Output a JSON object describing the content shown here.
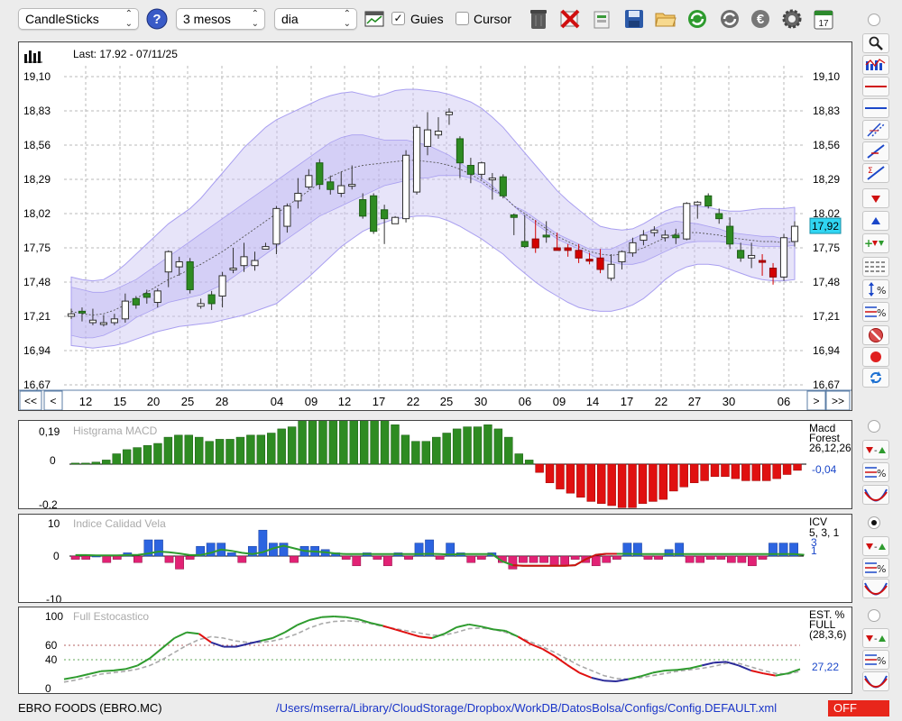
{
  "toolbar": {
    "chart_type": "CandleSticks",
    "period": "3 mesos",
    "interval": "dia",
    "guides_label": "Guies",
    "guides_checked": true,
    "cursor_label": "Cursor",
    "cursor_checked": false,
    "icons": [
      "help-icon",
      "chart-window-icon",
      "trash-icon",
      "delete-icon",
      "export-icon",
      "save-icon",
      "open-folder-icon",
      "refresh-icon",
      "globe-refresh-icon",
      "euro-icon",
      "settings-icon",
      "calendar-icon"
    ],
    "calendar_day": "17"
  },
  "main_chart": {
    "last_label": "Last: 17.92 - 07/11/25",
    "y_ticks": [
      "19,10",
      "18,83",
      "18,56",
      "18,29",
      "18,02",
      "17,75",
      "17,48",
      "17,21",
      "16,94",
      "16,67"
    ],
    "current_value": "17,92",
    "x_labels": [
      "12",
      "15",
      "20",
      "25",
      "28",
      "04",
      "09",
      "12",
      "17",
      "22",
      "25",
      "30",
      "06",
      "09",
      "14",
      "17",
      "22",
      "27",
      "30",
      "06"
    ],
    "nav_left": [
      "<<",
      "<"
    ],
    "nav_right": [
      ">",
      ">>"
    ],
    "y_min": 16.67,
    "y_max": 19.1,
    "colors": {
      "up": "#2e8b22",
      "down": "#d40000",
      "band": "#c9c3f2"
    },
    "candles": [
      [
        17.21,
        17.23,
        17.19,
        17.27,
        0
      ],
      [
        17.24,
        17.25,
        17.17,
        17.28,
        1
      ],
      [
        17.16,
        17.18,
        17.14,
        17.27,
        0
      ],
      [
        17.16,
        17.16,
        17.13,
        17.22,
        0
      ],
      [
        17.16,
        17.19,
        17.14,
        17.23,
        0
      ],
      [
        17.19,
        17.33,
        17.16,
        17.39,
        0
      ],
      [
        17.3,
        17.35,
        17.27,
        17.37,
        1
      ],
      [
        17.36,
        17.39,
        17.31,
        17.42,
        1
      ],
      [
        17.32,
        17.41,
        17.28,
        17.43,
        0
      ],
      [
        17.56,
        17.72,
        17.44,
        17.73,
        0
      ],
      [
        17.6,
        17.64,
        17.53,
        17.68,
        0
      ],
      [
        17.64,
        17.42,
        17.39,
        17.67,
        1
      ],
      [
        17.31,
        17.29,
        17.27,
        17.35,
        0
      ],
      [
        17.31,
        17.38,
        17.26,
        17.41,
        1
      ],
      [
        17.37,
        17.53,
        17.28,
        17.56,
        0
      ],
      [
        17.58,
        17.59,
        17.55,
        17.75,
        0
      ],
      [
        17.61,
        17.68,
        17.56,
        17.79,
        0
      ],
      [
        17.61,
        17.65,
        17.57,
        17.72,
        0
      ],
      [
        17.74,
        17.76,
        17.74,
        17.79,
        0
      ],
      [
        17.78,
        18.06,
        17.7,
        18.08,
        0
      ],
      [
        17.92,
        18.08,
        17.87,
        18.1,
        0
      ],
      [
        18.12,
        18.18,
        18.06,
        18.3,
        0
      ],
      [
        18.23,
        18.32,
        18.21,
        18.37,
        0
      ],
      [
        18.42,
        18.25,
        18.21,
        18.45,
        1
      ],
      [
        18.27,
        18.21,
        18.17,
        18.32,
        1
      ],
      [
        18.18,
        18.24,
        18.15,
        18.35,
        0
      ],
      [
        18.25,
        18.25,
        18.21,
        18.4,
        0
      ],
      [
        18.13,
        18.0,
        17.98,
        18.18,
        1
      ],
      [
        18.16,
        17.88,
        17.86,
        18.18,
        1
      ],
      [
        17.98,
        18.05,
        17.78,
        18.09,
        1
      ],
      [
        17.94,
        17.99,
        17.94,
        18.0,
        0
      ],
      [
        17.98,
        18.48,
        17.95,
        18.52,
        0
      ],
      [
        18.19,
        18.7,
        18.17,
        18.72,
        0
      ],
      [
        18.55,
        18.68,
        18.48,
        18.82,
        0
      ],
      [
        18.64,
        18.67,
        18.61,
        18.78,
        0
      ],
      [
        18.8,
        18.82,
        18.72,
        18.85,
        0
      ],
      [
        18.61,
        18.42,
        18.3,
        18.63,
        1
      ],
      [
        18.4,
        18.33,
        18.26,
        18.46,
        1
      ],
      [
        18.33,
        18.42,
        18.29,
        18.43,
        0
      ],
      [
        18.29,
        18.3,
        18.13,
        18.34,
        0
      ],
      [
        18.31,
        18.16,
        18.14,
        18.33,
        1
      ],
      [
        18.01,
        17.99,
        17.85,
        18.02,
        1
      ],
      [
        17.8,
        17.76,
        17.75,
        18.01,
        1
      ],
      [
        17.82,
        17.75,
        17.71,
        17.97,
        2
      ],
      [
        17.85,
        17.84,
        17.79,
        17.96,
        1
      ],
      [
        17.73,
        17.75,
        17.73,
        17.87,
        2
      ],
      [
        17.75,
        17.73,
        17.68,
        17.78,
        2
      ],
      [
        17.73,
        17.67,
        17.63,
        17.78,
        2
      ],
      [
        17.66,
        17.66,
        17.62,
        17.71,
        2
      ],
      [
        17.67,
        17.58,
        17.55,
        17.74,
        2
      ],
      [
        17.51,
        17.62,
        17.49,
        17.7,
        0
      ],
      [
        17.64,
        17.72,
        17.58,
        17.73,
        0
      ],
      [
        17.71,
        17.79,
        17.68,
        17.83,
        0
      ],
      [
        17.81,
        17.85,
        17.77,
        17.89,
        0
      ],
      [
        17.87,
        17.89,
        17.84,
        17.92,
        0
      ],
      [
        17.83,
        17.85,
        17.8,
        17.89,
        0
      ],
      [
        17.85,
        17.83,
        17.78,
        17.9,
        1
      ],
      [
        17.82,
        18.1,
        17.81,
        18.11,
        0
      ],
      [
        18.11,
        18.09,
        17.98,
        18.12,
        0
      ],
      [
        18.08,
        18.16,
        18.06,
        18.18,
        1
      ],
      [
        18.02,
        17.98,
        17.94,
        18.06,
        1
      ],
      [
        17.92,
        17.78,
        17.74,
        17.99,
        1
      ],
      [
        17.73,
        17.67,
        17.64,
        17.79,
        1
      ],
      [
        17.67,
        17.69,
        17.59,
        17.79,
        0
      ],
      [
        17.65,
        17.65,
        17.53,
        17.7,
        2
      ],
      [
        17.59,
        17.52,
        17.46,
        17.63,
        2
      ],
      [
        17.52,
        17.83,
        17.49,
        17.86,
        0
      ],
      [
        17.8,
        17.92,
        17.76,
        17.96,
        0
      ]
    ]
  },
  "macd_panel": {
    "title": "Histgrama MACD",
    "y_top": "0,19",
    "y_zero": "0",
    "y_bottom": "-0,2",
    "side_label": [
      "Macd",
      "Forest",
      "26,12,26"
    ],
    "value": "-0,04",
    "values": [
      0.005,
      0.005,
      0.01,
      0.02,
      0.05,
      0.07,
      0.08,
      0.09,
      0.1,
      0.13,
      0.14,
      0.14,
      0.13,
      0.11,
      0.12,
      0.12,
      0.13,
      0.14,
      0.14,
      0.15,
      0.17,
      0.18,
      0.22,
      0.25,
      0.29,
      0.31,
      0.32,
      0.31,
      0.28,
      0.25,
      0.22,
      0.19,
      0.14,
      0.11,
      0.11,
      0.13,
      0.15,
      0.17,
      0.18,
      0.18,
      0.19,
      0.17,
      0.13,
      0.05,
      0.02,
      -0.04,
      -0.09,
      -0.12,
      -0.14,
      -0.16,
      -0.18,
      -0.19,
      -0.2,
      -0.21,
      -0.21,
      -0.19,
      -0.18,
      -0.17,
      -0.13,
      -0.11,
      -0.09,
      -0.08,
      -0.06,
      -0.06,
      -0.07,
      -0.08,
      -0.08,
      -0.08,
      -0.07,
      -0.05,
      -0.03
    ]
  },
  "icv_panel": {
    "title": "Indice Calidad Vela",
    "y_top": "10",
    "y_zero": "0",
    "y_bottom": "-10",
    "side_label": [
      "ICV",
      "5, 3, 1"
    ],
    "value_a": "3",
    "value_b": "1",
    "values": [
      -1,
      -1,
      0,
      -2,
      -1,
      1,
      -2,
      5,
      5,
      -2,
      -4,
      -1,
      3,
      4,
      4,
      1,
      -2,
      3,
      8,
      4,
      4,
      -2,
      3,
      3,
      2,
      1,
      -1,
      -3,
      1,
      -1,
      -3,
      1,
      -1,
      4,
      5,
      -1,
      4,
      1,
      -2,
      -1,
      1,
      -2,
      -4,
      -2,
      -2,
      -2,
      -3,
      -3,
      -1,
      -2,
      -3,
      -2,
      -1,
      4,
      4,
      -1,
      -1,
      2,
      4,
      -2,
      -2,
      -1,
      -1,
      -2,
      -2,
      -3,
      -1,
      4,
      4,
      4
    ],
    "line": [
      0.3,
      0.3,
      0.2,
      0.2,
      0.2,
      0.3,
      0.4,
      0.8,
      1.4,
      1.2,
      0.8,
      0.3,
      0.3,
      1.0,
      2.0,
      1.6,
      1.0,
      0.6,
      1.2,
      2.4,
      3.2,
      2.4,
      1.6,
      1.4,
      1.2,
      0.8,
      0.6,
      0.6,
      0.6,
      0.6,
      0.6,
      0.6,
      0.6,
      0.6,
      0.7,
      0.6,
      0.5,
      0.6,
      0.6,
      0.6,
      0.6,
      -1.6,
      -2.8,
      -3.0,
      -3.0,
      -3.0,
      -3.0,
      -3.0,
      -2.8,
      -1.0,
      0.4,
      0.7,
      0.7,
      0.7,
      0.6,
      0.6,
      0.6,
      0.6,
      0.6,
      0.6,
      0.6,
      0.6,
      0.6,
      0.6,
      0.6,
      0.6,
      0.6,
      0.6,
      0.6,
      0.6,
      0.4
    ],
    "line_red_ranges": [
      [
        42,
        52
      ],
      [
        83,
        92
      ]
    ]
  },
  "sto_panel": {
    "title": "Full Estocastico",
    "y_ticks": [
      "100",
      "60",
      "40",
      "0"
    ],
    "side_label": [
      "EST. %",
      "FULL",
      "(28,3,6)"
    ],
    "value": "27,22",
    "k": [
      13,
      16,
      20,
      24,
      25,
      27,
      32,
      42,
      56,
      70,
      78,
      76,
      64,
      58,
      58,
      62,
      66,
      70,
      78,
      88,
      95,
      99,
      100,
      99,
      96,
      91,
      87,
      82,
      77,
      72,
      70,
      76,
      85,
      89,
      86,
      82,
      80,
      72,
      62,
      55,
      45,
      33,
      22,
      15,
      11,
      10,
      13,
      17,
      22,
      25,
      26,
      28,
      32,
      36,
      37,
      32,
      25,
      21,
      18,
      21,
      27
    ],
    "d": [
      9,
      12,
      16,
      20,
      22,
      24,
      27,
      32,
      40,
      50,
      60,
      68,
      72,
      70,
      66,
      64,
      64,
      66,
      70,
      76,
      84,
      90,
      93,
      94,
      93,
      90,
      86,
      83,
      80,
      77,
      74,
      74,
      78,
      83,
      84,
      82,
      78,
      72,
      65,
      58,
      50,
      41,
      32,
      25,
      18,
      14,
      13,
      15,
      18,
      21,
      24,
      26,
      28,
      31,
      35,
      35,
      30,
      25,
      21,
      20,
      24
    ]
  },
  "status": {
    "ticker": "EBRO FOODS (EBRO.MC)",
    "path": "/Users/mserra/Library/CloudStorage/Dropbox/WorkDB/DatosBolsa/Configs/Config.DEFAULT.xml",
    "indicator": "OFF"
  },
  "right_tools": {
    "icons": [
      "zoom-icon",
      "chart-bars-icon",
      "red-horizontal-line-icon",
      "blue-horizontal-line-icon",
      "parallel-channel-icon",
      "trend-line-icon",
      "sigma-trend-icon",
      "down-arrow-icon",
      "up-arrow-icon",
      "plus-down-icon",
      "grid-lines-icon",
      "percent-range-icon",
      "percent-lines-icon",
      "no-sign-icon",
      "record-icon",
      "reload-icon"
    ]
  }
}
